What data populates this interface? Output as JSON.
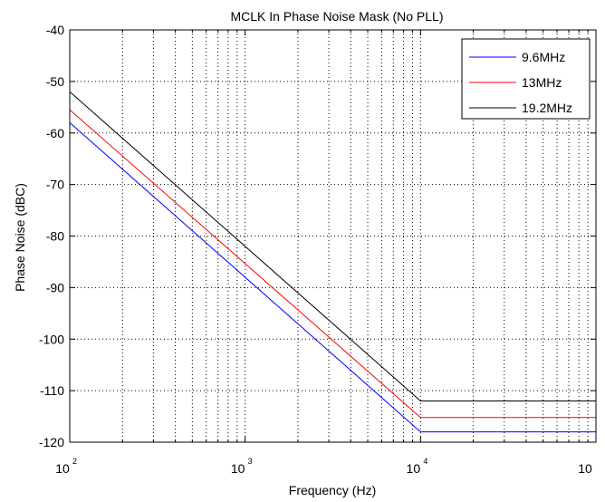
{
  "chart_data": {
    "type": "line",
    "title": "MCLK In Phase Noise Mask (No PLL)",
    "xlabel": "Frequency (Hz)",
    "ylabel": "Phase Noise (dBC)",
    "x_scale": "log",
    "xlim": [
      100,
      100000
    ],
    "ylim": [
      -120,
      -40
    ],
    "grid": true,
    "legend_position": "top-right",
    "x_ticks": [
      {
        "base": "10",
        "exp": "2"
      },
      {
        "base": "10",
        "exp": "3"
      },
      {
        "base": "10",
        "exp": "4"
      },
      {
        "base": "10",
        "exp": ""
      }
    ],
    "y_ticks": [
      "-40",
      "-50",
      "-60",
      "-70",
      "-80",
      "-90",
      "-100",
      "-110",
      "-120"
    ],
    "y_tick_values": [
      -40,
      -50,
      -60,
      -70,
      -80,
      -90,
      -100,
      -110,
      -120
    ],
    "series": [
      {
        "name": "9.6MHz",
        "color": "#0000ff",
        "x": [
          100,
          10000,
          100000
        ],
        "y": [
          -58,
          -118,
          -118
        ]
      },
      {
        "name": "13MHz",
        "color": "#ff0000",
        "x": [
          100,
          10000,
          100000
        ],
        "y": [
          -55.5,
          -115.2,
          -115.2
        ]
      },
      {
        "name": "19.2MHz",
        "color": "#000000",
        "x": [
          100,
          10000,
          100000
        ],
        "y": [
          -52,
          -112,
          -112
        ]
      }
    ]
  }
}
